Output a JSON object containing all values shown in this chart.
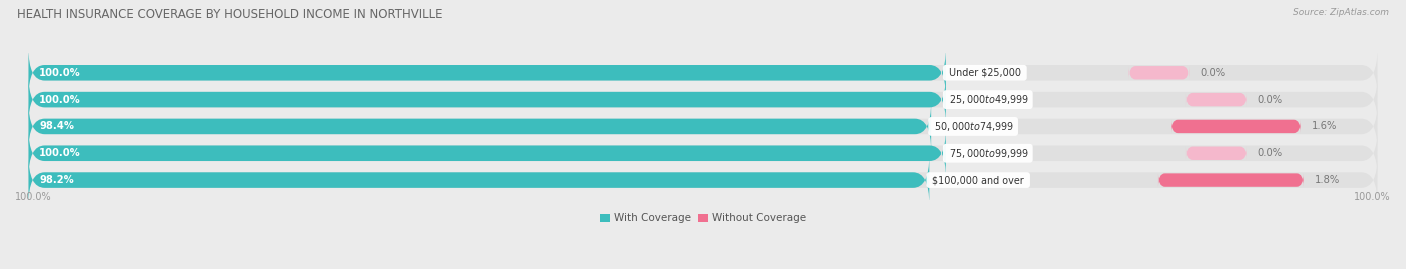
{
  "title": "HEALTH INSURANCE COVERAGE BY HOUSEHOLD INCOME IN NORTHVILLE",
  "source": "Source: ZipAtlas.com",
  "categories": [
    "Under $25,000",
    "$25,000 to $49,999",
    "$50,000 to $74,999",
    "$75,000 to $99,999",
    "$100,000 and over"
  ],
  "with_coverage": [
    100.0,
    100.0,
    98.4,
    100.0,
    98.2
  ],
  "without_coverage": [
    0.0,
    0.0,
    1.6,
    0.0,
    1.8
  ],
  "color_with": "#3DBDBD",
  "color_without": "#F07090",
  "color_without_light": "#F5B8CC",
  "bg_color": "#EBEBEB",
  "bar_bg": "#E0E0E0",
  "title_fontsize": 8.5,
  "label_fontsize": 7.2,
  "tick_fontsize": 7.0,
  "legend_fontsize": 7.5,
  "bar_height": 0.58,
  "total_bar_width": 100.0,
  "scale_factor": 0.68
}
